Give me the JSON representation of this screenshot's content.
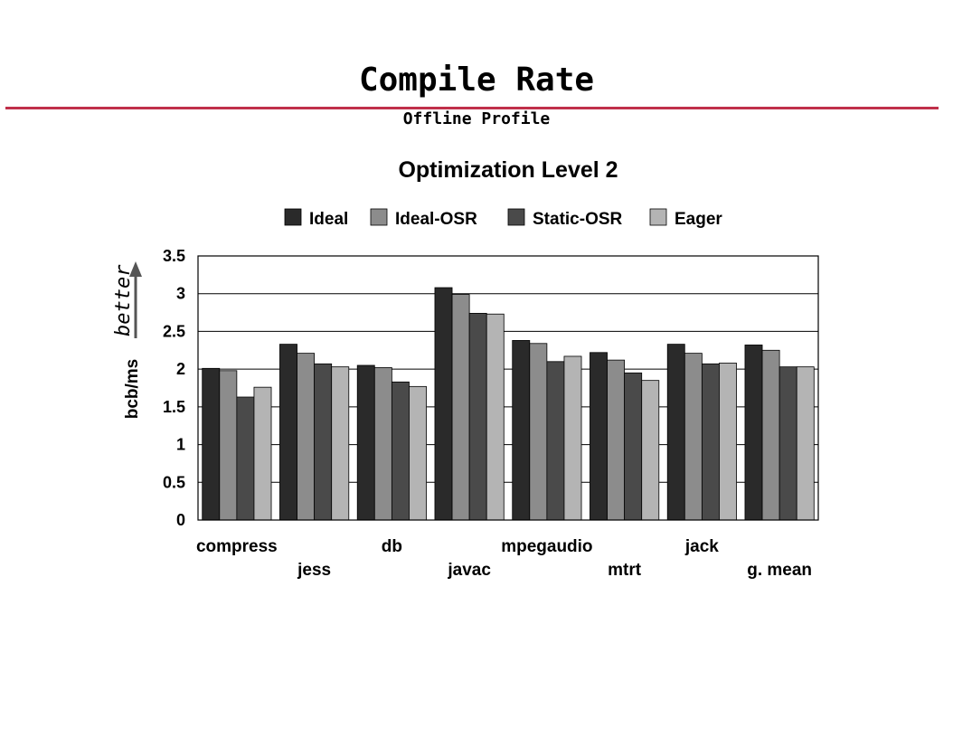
{
  "slide": {
    "title": "Compile Rate",
    "subtitle": "Offline Profile",
    "accent_color": "#c0304a"
  },
  "annotation": {
    "better_label": "better"
  },
  "chart_data": {
    "type": "bar",
    "title": "Optimization Level 2",
    "xlabel": "",
    "ylabel": "bcb/ms",
    "ylim": [
      0,
      3.5
    ],
    "yticks": [
      "0",
      "0.5",
      "1",
      "1.5",
      "2",
      "2.5",
      "3",
      "3.5"
    ],
    "grid": true,
    "legend_position": "top",
    "categories": [
      "compress",
      "jess",
      "db",
      "javac",
      "mpegaudio",
      "mtrt",
      "jack",
      "g. mean"
    ],
    "series": [
      {
        "name": "Ideal",
        "color": "#2a2a2a",
        "values": [
          2.01,
          2.33,
          2.05,
          3.08,
          2.38,
          2.22,
          2.33,
          2.32
        ]
      },
      {
        "name": "Ideal-OSR",
        "color": "#8c8c8c",
        "values": [
          1.98,
          2.21,
          2.02,
          2.99,
          2.34,
          2.12,
          2.21,
          2.25
        ]
      },
      {
        "name": "Static-OSR",
        "color": "#4a4a4a",
        "values": [
          1.63,
          2.07,
          1.83,
          2.74,
          2.1,
          1.95,
          2.07,
          2.03
        ]
      },
      {
        "name": "Eager",
        "color": "#b4b4b4",
        "values": [
          1.76,
          2.03,
          1.77,
          2.73,
          2.17,
          1.85,
          2.08,
          2.03
        ]
      }
    ]
  }
}
